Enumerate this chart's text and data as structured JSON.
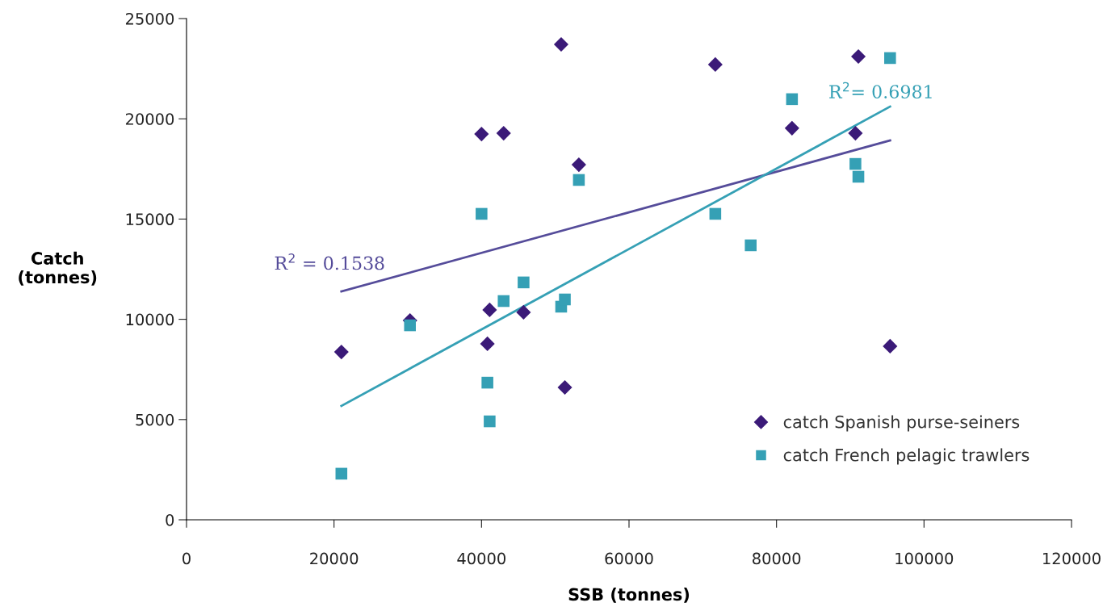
{
  "chart_data": {
    "type": "scatter",
    "xlabel": "SSB (tonnes)",
    "ylabel": "Catch\n(tonnes)",
    "xlim": [
      0,
      120000
    ],
    "xticks": [
      0,
      20000,
      40000,
      60000,
      80000,
      100000,
      120000
    ],
    "ylim": [
      0,
      25000
    ],
    "yticks": [
      0,
      5000,
      10000,
      15000,
      20000,
      25000
    ],
    "grid": false,
    "legend": "bottom right",
    "x": [
      21000,
      30300,
      40000,
      40800,
      41100,
      43000,
      45700,
      50800,
      51300,
      53200,
      71700,
      76500,
      82100,
      90700,
      91100,
      95400
    ],
    "series": [
      {
        "name": "catch Spanish purse-seiners",
        "color": "#3b1a78",
        "marker": "diamond",
        "values": [
          8370,
          9940,
          19240,
          8780,
          10470,
          19280,
          10350,
          23710,
          6600,
          17710,
          22710,
          null,
          19530,
          19280,
          23110,
          8660
        ]
      },
      {
        "name": "catch French pelagic trawlers",
        "color": "#35a0b5",
        "marker": "square",
        "values": [
          2300,
          9700,
          15260,
          6840,
          4910,
          10910,
          11840,
          10630,
          10990,
          16950,
          15260,
          13690,
          20980,
          17750,
          17110,
          23030
        ]
      },
      {
        "type": "line",
        "color": "#554c9a",
        "values": [
          11390,
          null,
          null,
          null,
          null,
          null,
          null,
          null,
          null,
          null,
          null,
          null,
          null,
          null,
          null,
          18920
        ]
      },
      {
        "type": "line",
        "color": "#35a0b5",
        "values": [
          5680,
          null,
          null,
          null,
          null,
          null,
          null,
          null,
          null,
          null,
          null,
          null,
          null,
          null,
          null,
          20610
        ]
      }
    ],
    "annotations": [
      "R$^{2}$ = 0.1538",
      "R$^{2}$= 0.6981"
    ]
  }
}
